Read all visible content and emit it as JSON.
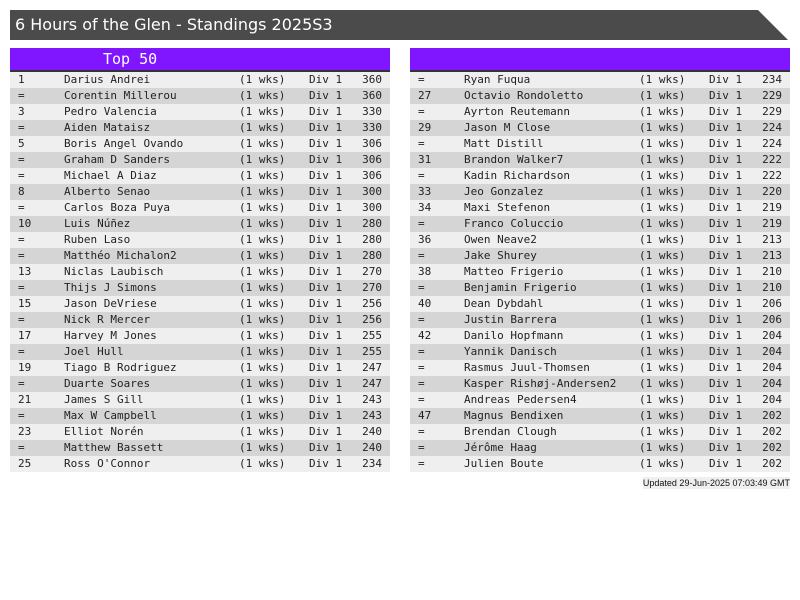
{
  "title": "6 Hours of the Glen - Standings 2025S3",
  "left": {
    "header": "Top 50",
    "rows": [
      [
        "1",
        "Darius Andrei",
        "(1 wks)",
        "Div 1",
        "360"
      ],
      [
        "=",
        "Corentin Millerou",
        "(1 wks)",
        "Div 1",
        "360"
      ],
      [
        "3",
        "Pedro Valencia",
        "(1 wks)",
        "Div 1",
        "330"
      ],
      [
        "=",
        "Aiden Mataisz",
        "(1 wks)",
        "Div 1",
        "330"
      ],
      [
        "5",
        "Boris Angel Ovando",
        "(1 wks)",
        "Div 1",
        "306"
      ],
      [
        "=",
        "Graham D Sanders",
        "(1 wks)",
        "Div 1",
        "306"
      ],
      [
        "=",
        "Michael A Diaz",
        "(1 wks)",
        "Div 1",
        "306"
      ],
      [
        "8",
        "Alberto Senao",
        "(1 wks)",
        "Div 1",
        "300"
      ],
      [
        "=",
        "Carlos Boza Puya",
        "(1 wks)",
        "Div 1",
        "300"
      ],
      [
        "10",
        "Luis Núñez",
        "(1 wks)",
        "Div 1",
        "280"
      ],
      [
        "=",
        "Ruben Laso",
        "(1 wks)",
        "Div 1",
        "280"
      ],
      [
        "=",
        "Matthéo Michalon2",
        "(1 wks)",
        "Div 1",
        "280"
      ],
      [
        "13",
        "Niclas Laubisch",
        "(1 wks)",
        "Div 1",
        "270"
      ],
      [
        "=",
        "Thijs J Simons",
        "(1 wks)",
        "Div 1",
        "270"
      ],
      [
        "15",
        "Jason DeVriese",
        "(1 wks)",
        "Div 1",
        "256"
      ],
      [
        "=",
        "Nick R Mercer",
        "(1 wks)",
        "Div 1",
        "256"
      ],
      [
        "17",
        "Harvey M Jones",
        "(1 wks)",
        "Div 1",
        "255"
      ],
      [
        "=",
        "Joel Hull",
        "(1 wks)",
        "Div 1",
        "255"
      ],
      [
        "19",
        "Tiago B Rodriguez",
        "(1 wks)",
        "Div 1",
        "247"
      ],
      [
        "=",
        "Duarte Soares",
        "(1 wks)",
        "Div 1",
        "247"
      ],
      [
        "21",
        "James S Gill",
        "(1 wks)",
        "Div 1",
        "243"
      ],
      [
        "=",
        "Max W Campbell",
        "(1 wks)",
        "Div 1",
        "243"
      ],
      [
        "23",
        "Elliot Norén",
        "(1 wks)",
        "Div 1",
        "240"
      ],
      [
        "=",
        "Matthew Bassett",
        "(1 wks)",
        "Div 1",
        "240"
      ],
      [
        "25",
        "Ross O'Connor",
        "(1 wks)",
        "Div 1",
        "234"
      ]
    ]
  },
  "right": {
    "header": "",
    "rows": [
      [
        "=",
        "Ryan Fuqua",
        "(1 wks)",
        "Div 1",
        "234"
      ],
      [
        "27",
        "Octavio Rondoletto",
        "(1 wks)",
        "Div 1",
        "229"
      ],
      [
        "=",
        "Ayrton Reutemann",
        "(1 wks)",
        "Div 1",
        "229"
      ],
      [
        "29",
        "Jason M Close",
        "(1 wks)",
        "Div 1",
        "224"
      ],
      [
        "=",
        "Matt Distill",
        "(1 wks)",
        "Div 1",
        "224"
      ],
      [
        "31",
        "Brandon Walker7",
        "(1 wks)",
        "Div 1",
        "222"
      ],
      [
        "=",
        "Kadin Richardson",
        "(1 wks)",
        "Div 1",
        "222"
      ],
      [
        "33",
        "Jeo Gonzalez",
        "(1 wks)",
        "Div 1",
        "220"
      ],
      [
        "34",
        "Maxi Stefenon",
        "(1 wks)",
        "Div 1",
        "219"
      ],
      [
        "=",
        "Franco Coluccio",
        "(1 wks)",
        "Div 1",
        "219"
      ],
      [
        "36",
        "Owen Neave2",
        "(1 wks)",
        "Div 1",
        "213"
      ],
      [
        "=",
        "Jake Shurey",
        "(1 wks)",
        "Div 1",
        "213"
      ],
      [
        "38",
        "Matteo Frigerio",
        "(1 wks)",
        "Div 1",
        "210"
      ],
      [
        "=",
        "Benjamin Frigerio",
        "(1 wks)",
        "Div 1",
        "210"
      ],
      [
        "40",
        "Dean Dybdahl",
        "(1 wks)",
        "Div 1",
        "206"
      ],
      [
        "=",
        "Justin Barrera",
        "(1 wks)",
        "Div 1",
        "206"
      ],
      [
        "42",
        "Danilo Hopfmann",
        "(1 wks)",
        "Div 1",
        "204"
      ],
      [
        "=",
        "Yannik Danisch",
        "(1 wks)",
        "Div 1",
        "204"
      ],
      [
        "=",
        "Rasmus Juul-Thomsen",
        "(1 wks)",
        "Div 1",
        "204"
      ],
      [
        "=",
        "Kasper Rishøj-Andersen2",
        "(1 wks)",
        "Div 1",
        "204"
      ],
      [
        "=",
        "Andreas Pedersen4",
        "(1 wks)",
        "Div 1",
        "204"
      ],
      [
        "47",
        "Magnus Bendixen",
        "(1 wks)",
        "Div 1",
        "202"
      ],
      [
        "=",
        "Brendan Clough",
        "(1 wks)",
        "Div 1",
        "202"
      ],
      [
        "=",
        "Jérôme Haag",
        "(1 wks)",
        "Div 1",
        "202"
      ],
      [
        "=",
        "Julien Boute",
        "(1 wks)",
        "Div 1",
        "202"
      ]
    ]
  },
  "updated": "Updated 29-Jun-2025 07:03:49 GMT",
  "colors": {
    "title_bg": "#4b4b4b",
    "header_bg": "#8015ff",
    "row_light": "#efefef",
    "row_dark": "#d5d5d5"
  }
}
